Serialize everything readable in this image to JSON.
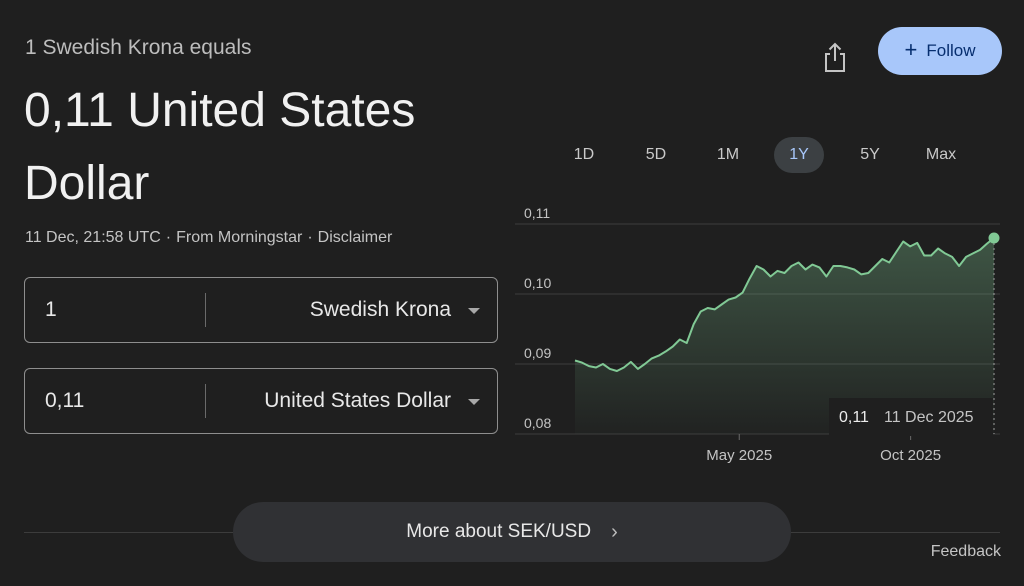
{
  "header": {
    "subtitle": "1 Swedish Krona equals",
    "result": "0,11 United States Dollar",
    "timestamp": "11 Dec, 21:58 UTC",
    "source": "From Morningstar",
    "disclaimer": "Disclaimer",
    "separator": "·"
  },
  "actions": {
    "share_icon": "share-icon",
    "follow_label": "Follow",
    "follow_icon": "+"
  },
  "converter": {
    "from": {
      "amount": "1",
      "currency": "Swedish Krona"
    },
    "to": {
      "amount": "0,11",
      "currency": "United States Dollar"
    }
  },
  "ranges": {
    "items": [
      "1D",
      "5D",
      "1M",
      "1Y",
      "5Y",
      "Max"
    ],
    "selected": "1Y"
  },
  "tooltip": {
    "value": "0,11",
    "date": "11 Dec 2025"
  },
  "chart_data": {
    "type": "area",
    "ylim": [
      0.08,
      0.11
    ],
    "y_ticks": [
      "0,11",
      "0,10",
      "0,09",
      "0,08"
    ],
    "x_tick_labels": [
      "May 2025",
      "Oct 2025"
    ],
    "x_tick_positions": [
      0.392,
      0.801
    ],
    "series": [
      {
        "values": [
          0.0905,
          0.0902,
          0.0897,
          0.0895,
          0.09,
          0.0893,
          0.089,
          0.0895,
          0.0903,
          0.0893,
          0.09,
          0.0908,
          0.0912,
          0.0918,
          0.0925,
          0.0935,
          0.093,
          0.0957,
          0.0975,
          0.098,
          0.0978,
          0.0985,
          0.0992,
          0.0995,
          0.1002,
          0.1022,
          0.104,
          0.1035,
          0.1025,
          0.1033,
          0.103,
          0.104,
          0.1045,
          0.1035,
          0.1042,
          0.1038,
          0.1025,
          0.104,
          0.104,
          0.1038,
          0.1035,
          0.1028,
          0.103,
          0.104,
          0.105,
          0.1045,
          0.106,
          0.1075,
          0.1068,
          0.1073,
          0.1055,
          0.1055,
          0.1065,
          0.1058,
          0.1053,
          0.104,
          0.1053,
          0.1058,
          0.1063,
          0.1072,
          0.108
        ]
      }
    ],
    "line_color": "#81c995",
    "grid": true
  },
  "more_button": {
    "label": "More about SEK/USD",
    "chevron": "›"
  },
  "feedback": "Feedback"
}
